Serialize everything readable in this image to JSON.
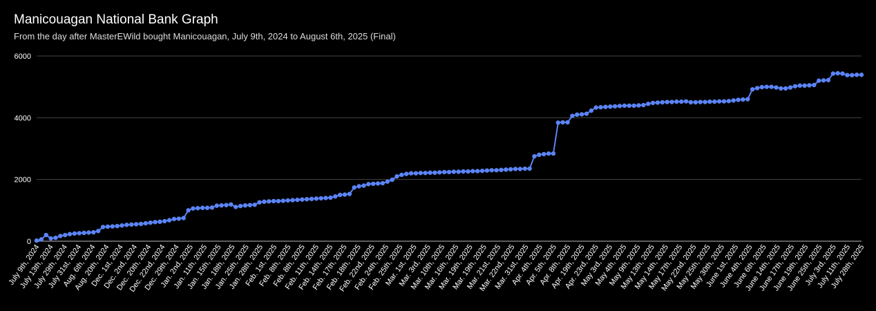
{
  "chart_data": {
    "type": "line",
    "title": "Manicouagan National Bank Graph",
    "subtitle": "From the day after MasterEWild bought Manicouagan, July 9th, 2024 to August 6th, 2025 (Final)",
    "xlabel": "",
    "ylabel": "",
    "ylim": [
      0,
      6000
    ],
    "yticks": [
      0,
      2000,
      4000,
      6000
    ],
    "grid": true,
    "legend": "none",
    "series_color": "#5b84f5",
    "x_tick_labels": [
      "July 9th, 2024",
      "July 13th, 2024",
      "July 29th, 2024",
      "July 31st, 2024",
      "Aug. 6th, 2024",
      "Aug. 20th, 2024",
      "Dec. 1st, 2024",
      "Dec. 2nd, 2024",
      "Dec. 20th, 2024",
      "Dec. 22nd, 2024",
      "Dec. 29th, 2024",
      "Jan. 2nd, 2025",
      "Jan. 11th, 2025",
      "Jan. 15th, 2025",
      "Jan. 18th, 2025",
      "Jan. 25th, 2025",
      "Jan. 28th, 2025",
      "Feb. 1st, 2025",
      "Feb. 8th, 2025",
      "Feb. 8th, 2025",
      "Feb. 11th, 2025",
      "Feb. 14th, 2025",
      "Feb. 17th, 2025",
      "Feb. 18th, 2025",
      "Feb. 22nd, 2025",
      "Feb. 24th, 2025",
      "Feb. 25th, 2025",
      "Mar. 1st, 2025",
      "Mar. 3rd, 2025",
      "Mar. 10th, 2025",
      "Mar. 16th, 2025",
      "Mar. 19th, 2025",
      "Mar. 19th, 2025",
      "Mar. 21st, 2025",
      "Mar. 22nd, 2025",
      "Mar. 31st, 2025",
      "Apr. 4th, 2025",
      "Apr. 5th, 2025",
      "Apr. 8th, 2025",
      "Apr. 19th, 2025",
      "Apr. 23rd, 2025",
      "May 3rd, 2025",
      "May 4th, 2025",
      "May 9th, 2025",
      "May 13th, 2025",
      "May 14th, 2025",
      "May 17th, 2025",
      "May 22nd, 2025",
      "May 25th, 2025",
      "May 30th, 2025",
      "June 1st, 2025",
      "June 4th, 2025",
      "June 6th, 2025",
      "June 14th, 2025",
      "June 17th, 2025",
      "June 19th, 2025",
      "June 25th, 2025",
      "July 3rd, 2025",
      "July 11th, 2025",
      "July 28th, 2025"
    ],
    "values": [
      20,
      60,
      200,
      90,
      110,
      170,
      200,
      230,
      250,
      260,
      270,
      280,
      290,
      330,
      460,
      470,
      480,
      490,
      510,
      530,
      540,
      550,
      560,
      580,
      600,
      620,
      630,
      650,
      680,
      720,
      730,
      750,
      1000,
      1060,
      1070,
      1080,
      1080,
      1090,
      1150,
      1160,
      1170,
      1190,
      1110,
      1140,
      1160,
      1170,
      1180,
      1260,
      1280,
      1290,
      1300,
      1300,
      1310,
      1320,
      1330,
      1340,
      1350,
      1360,
      1370,
      1380,
      1390,
      1400,
      1410,
      1450,
      1500,
      1510,
      1530,
      1740,
      1780,
      1800,
      1850,
      1860,
      1870,
      1880,
      1930,
      1990,
      2100,
      2150,
      2180,
      2200,
      2200,
      2210,
      2210,
      2220,
      2220,
      2230,
      2240,
      2240,
      2250,
      2250,
      2260,
      2260,
      2270,
      2270,
      2280,
      2290,
      2300,
      2300,
      2310,
      2320,
      2330,
      2340,
      2340,
      2350,
      2350,
      2750,
      2800,
      2820,
      2840,
      2840,
      3840,
      3850,
      3850,
      4060,
      4100,
      4110,
      4130,
      4230,
      4330,
      4340,
      4350,
      4360,
      4370,
      4380,
      4390,
      4390,
      4390,
      4400,
      4410,
      4450,
      4480,
      4490,
      4500,
      4510,
      4510,
      4520,
      4520,
      4530,
      4500,
      4500,
      4510,
      4510,
      4520,
      4520,
      4530,
      4530,
      4540,
      4560,
      4580,
      4590,
      4600,
      4920,
      4960,
      4990,
      5000,
      5000,
      4980,
      4950,
      4950,
      4980,
      5020,
      5040,
      5040,
      5050,
      5060,
      5200,
      5210,
      5220,
      5430,
      5440,
      5430,
      5380,
      5380,
      5390,
      5390
    ]
  }
}
